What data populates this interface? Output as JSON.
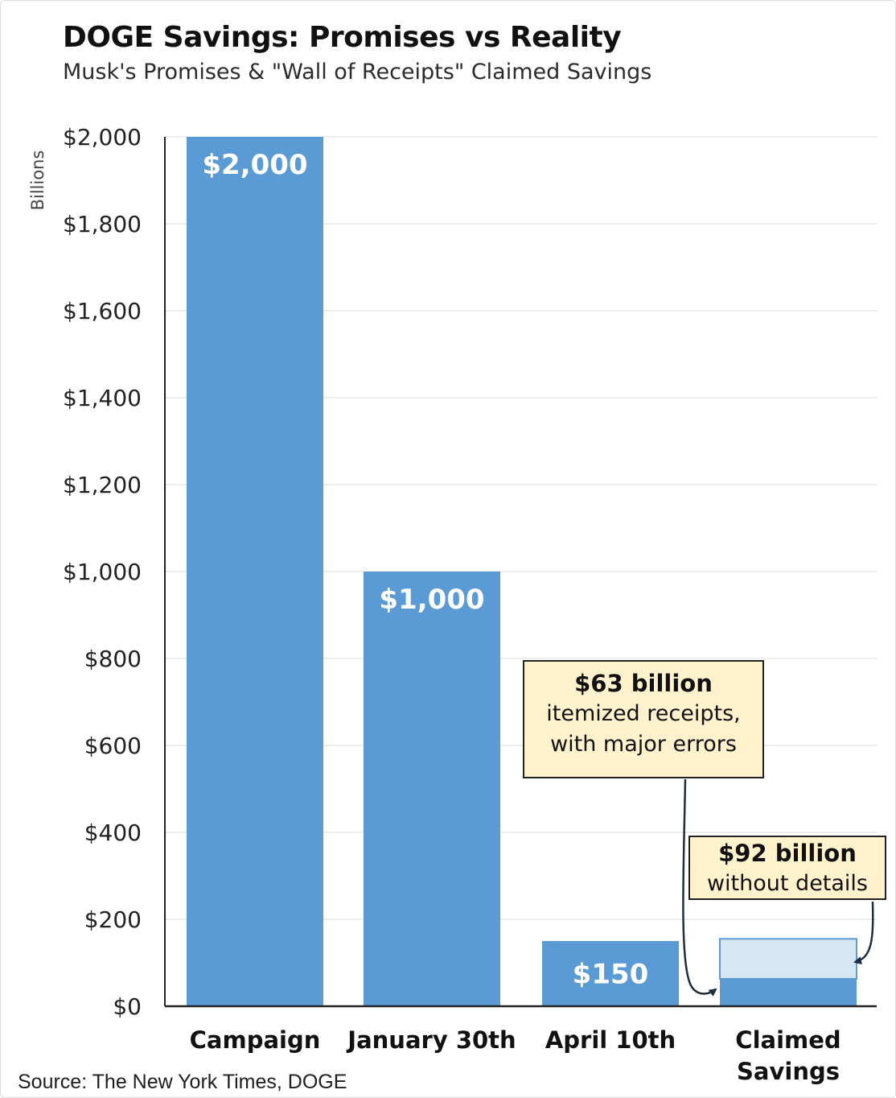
{
  "title": "DOGE Savings: Promises vs Reality",
  "subtitle": "Musk's Promises & \"Wall of Receipts\" Claimed Savings",
  "source": "Source: The New York Times, DOGE",
  "colors": {
    "bar": "#5b9bd5",
    "bar_light": "#d6e6f5",
    "callout_fill": "#fff2cc",
    "gridline": "#e9e9e9",
    "axis": "#222222"
  },
  "chart_data": {
    "type": "bar",
    "ylabel": "Billions",
    "ylim": [
      0,
      2000
    ],
    "yticks": [
      0,
      200,
      400,
      600,
      800,
      1000,
      1200,
      1400,
      1600,
      1800,
      2000
    ],
    "ytick_labels": [
      "$0",
      "$200",
      "$400",
      "$600",
      "$800",
      "$1,000",
      "$1,200",
      "$1,400",
      "$1,600",
      "$1,800",
      "$2,000"
    ],
    "grid": true,
    "categories": [
      "Campaign",
      "January 30th",
      "April 10th",
      "Claimed Savings"
    ],
    "values": [
      2000,
      1000,
      150,
      null
    ],
    "data_labels": [
      "$2,000",
      "$1,000",
      "$150",
      ""
    ],
    "stacked": {
      "category": "Claimed Savings",
      "segments": [
        {
          "value": 63,
          "style": "solid"
        },
        {
          "value": 92,
          "style": "light"
        }
      ]
    },
    "annotations": [
      {
        "id": "itemized",
        "bold": "$63 billion",
        "lines": [
          "itemized receipts,",
          "with major errors"
        ],
        "points_to_value": 63
      },
      {
        "id": "undetailed",
        "bold": "$92 billion",
        "lines": [
          "without details"
        ],
        "points_to_value": 92
      }
    ]
  }
}
